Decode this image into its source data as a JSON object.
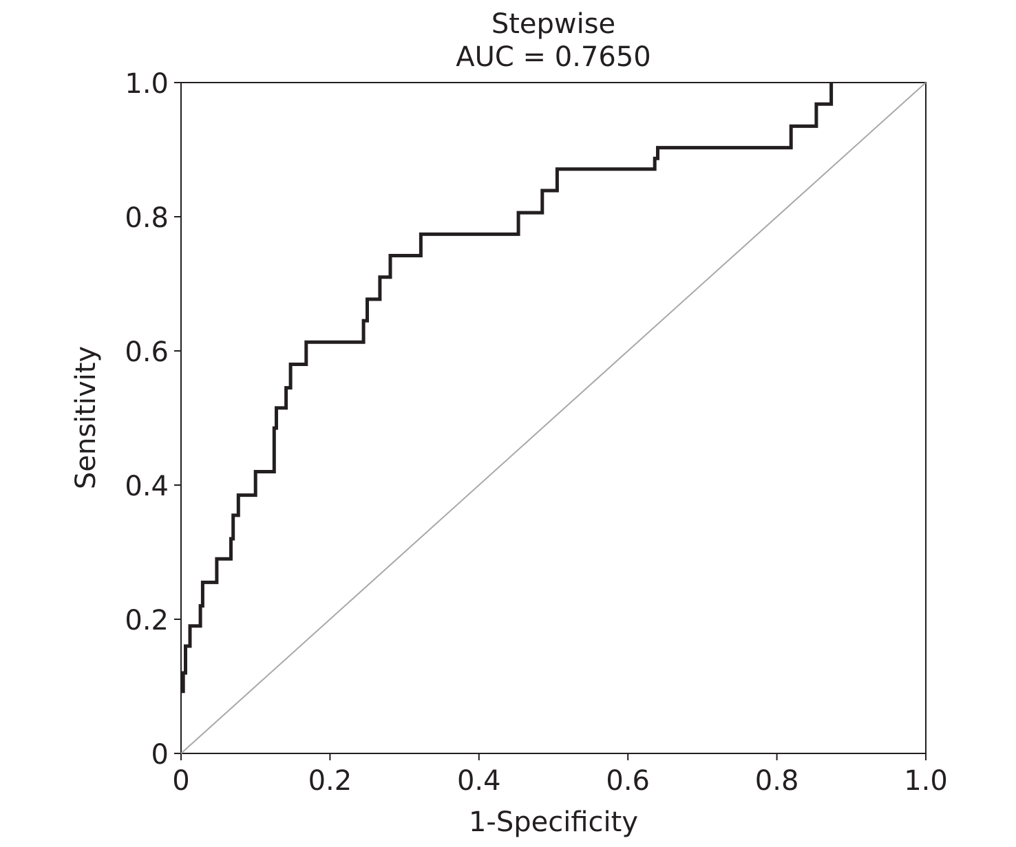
{
  "chart_data": {
    "type": "line",
    "title": "Stepwise",
    "subtitle": "AUC = 0.7650",
    "xlabel": "1-Specificity",
    "ylabel": "Sensitivity",
    "xlim": [
      0,
      1
    ],
    "ylim": [
      0,
      1
    ],
    "x_ticks": [
      0,
      0.2,
      0.4,
      0.6,
      0.8,
      1.0
    ],
    "x_tick_labels": [
      "0",
      "0.2",
      "0.4",
      "0.6",
      "0.8",
      "1.0"
    ],
    "y_ticks": [
      0,
      0.2,
      0.4,
      0.6,
      0.8,
      1.0
    ],
    "y_tick_labels": [
      "0",
      "0.2",
      "0.4",
      "0.6",
      "0.8",
      "1.0"
    ],
    "grid": false,
    "legend": "none",
    "colors": {
      "roc": "#231f20",
      "reference": "#a8a8a8",
      "axis": "#231f20"
    },
    "series": [
      {
        "points": [
          [
            0.003,
            0.09
          ],
          [
            0.003,
            0.12
          ],
          [
            0.006,
            0.12
          ],
          [
            0.006,
            0.16
          ],
          [
            0.012,
            0.16
          ],
          [
            0.012,
            0.19
          ],
          [
            0.026,
            0.19
          ],
          [
            0.026,
            0.22
          ],
          [
            0.029,
            0.22
          ],
          [
            0.029,
            0.255
          ],
          [
            0.048,
            0.255
          ],
          [
            0.048,
            0.29
          ],
          [
            0.067,
            0.29
          ],
          [
            0.067,
            0.32
          ],
          [
            0.07,
            0.32
          ],
          [
            0.07,
            0.355
          ],
          [
            0.077,
            0.355
          ],
          [
            0.077,
            0.385
          ],
          [
            0.1,
            0.385
          ],
          [
            0.1,
            0.42
          ],
          [
            0.125,
            0.42
          ],
          [
            0.125,
            0.485
          ],
          [
            0.128,
            0.485
          ],
          [
            0.128,
            0.515
          ],
          [
            0.141,
            0.515
          ],
          [
            0.141,
            0.545
          ],
          [
            0.147,
            0.545
          ],
          [
            0.147,
            0.58
          ],
          [
            0.168,
            0.58
          ],
          [
            0.168,
            0.613
          ],
          [
            0.245,
            0.613
          ],
          [
            0.245,
            0.645
          ],
          [
            0.25,
            0.645
          ],
          [
            0.25,
            0.677
          ],
          [
            0.267,
            0.677
          ],
          [
            0.267,
            0.71
          ],
          [
            0.281,
            0.71
          ],
          [
            0.281,
            0.742
          ],
          [
            0.322,
            0.742
          ],
          [
            0.322,
            0.774
          ],
          [
            0.453,
            0.774
          ],
          [
            0.453,
            0.806
          ],
          [
            0.485,
            0.806
          ],
          [
            0.485,
            0.839
          ],
          [
            0.505,
            0.839
          ],
          [
            0.505,
            0.871
          ],
          [
            0.636,
            0.871
          ],
          [
            0.636,
            0.887
          ],
          [
            0.64,
            0.887
          ],
          [
            0.64,
            0.903
          ],
          [
            0.819,
            0.903
          ],
          [
            0.819,
            0.935
          ],
          [
            0.853,
            0.935
          ],
          [
            0.853,
            0.968
          ],
          [
            0.873,
            0.968
          ],
          [
            0.873,
            1.0
          ]
        ]
      }
    ],
    "reference_line": [
      [
        0,
        0
      ],
      [
        1,
        1
      ]
    ]
  }
}
